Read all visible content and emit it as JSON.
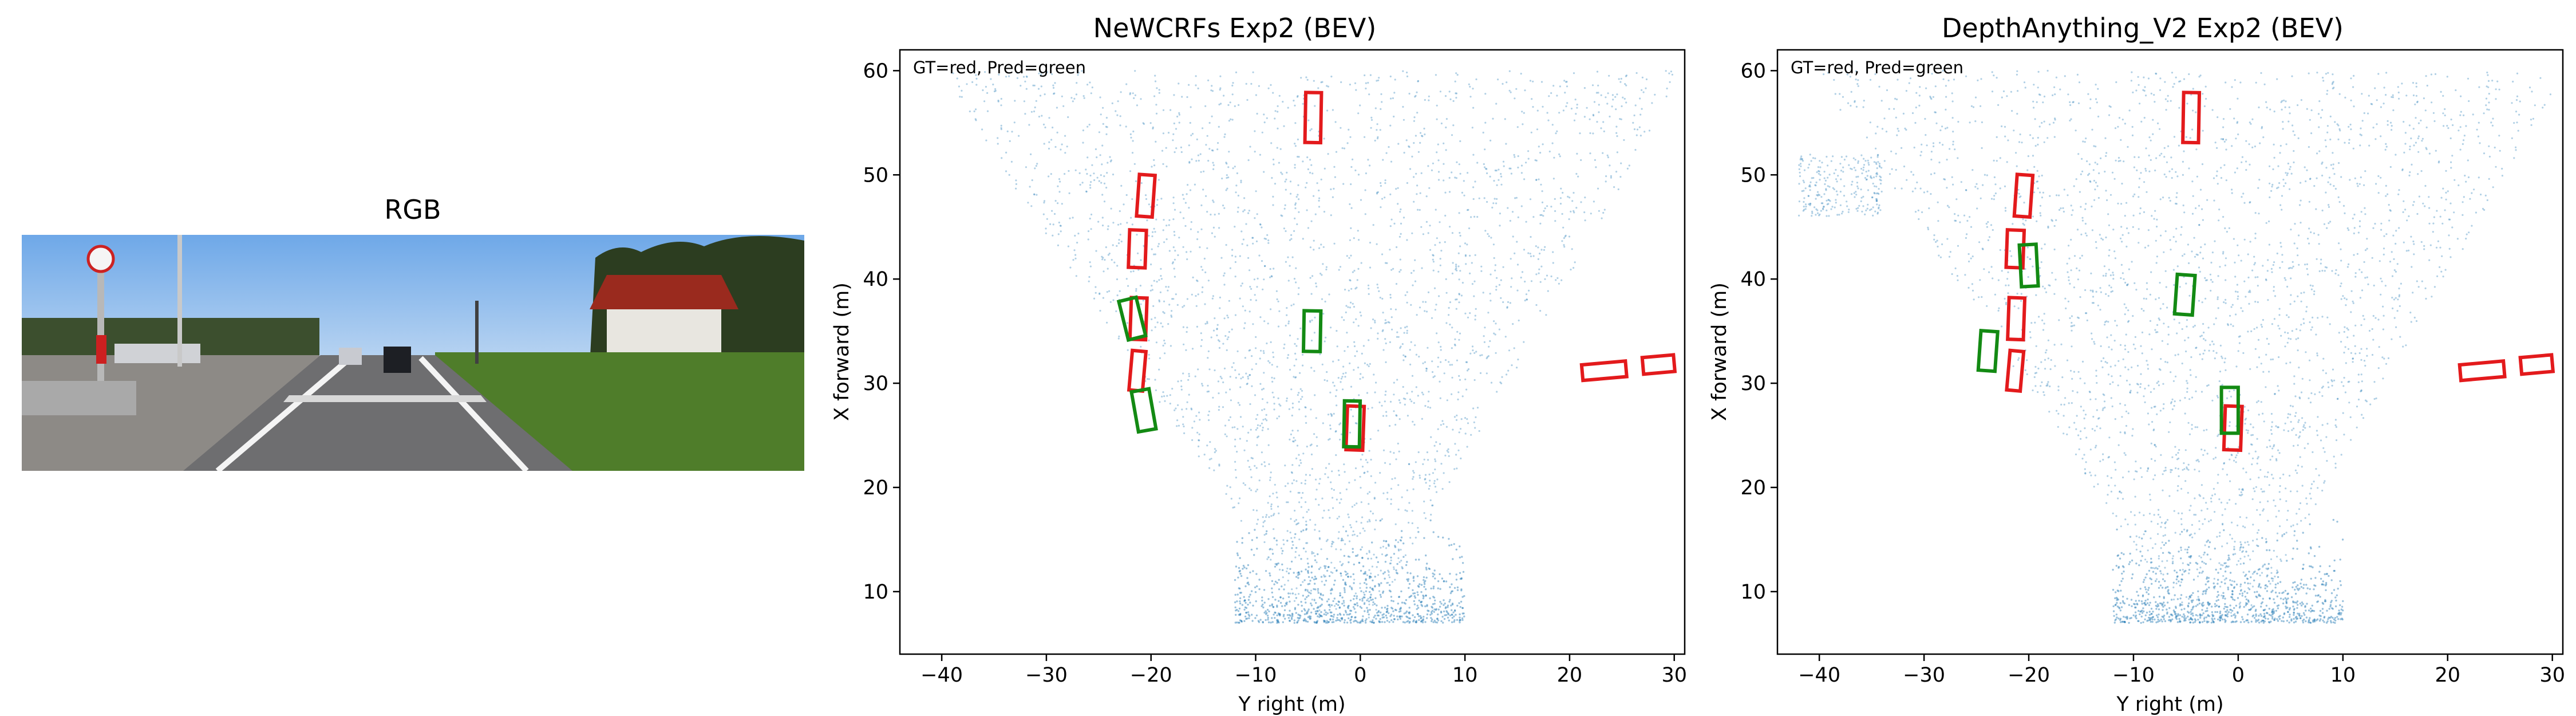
{
  "figure": {
    "rgb_title": "RGB"
  },
  "colors": {
    "gt": "#e31a1c",
    "pred": "#138a13",
    "points": "#1f77b4",
    "axes": "#000000"
  },
  "chart_data": [
    {
      "type": "scatter",
      "title": "NeWCRFs Exp2 (BEV)",
      "xlabel": "Y right (m)",
      "ylabel": "X forward (m)",
      "annotation": "GT=red, Pred=green",
      "xlim": [
        -44,
        31
      ],
      "ylim": [
        4,
        62
      ],
      "xticks": [
        -40,
        -30,
        -20,
        -10,
        0,
        10,
        20,
        30
      ],
      "yticks": [
        10,
        20,
        30,
        40,
        50,
        60
      ],
      "grid": false,
      "gt_boxes": [
        {
          "y": -4.5,
          "x": 55.5,
          "w": 1.5,
          "l": 4.8,
          "angle": 1
        },
        {
          "y": -20.5,
          "x": 48.0,
          "w": 1.5,
          "l": 4.0,
          "angle": 4
        },
        {
          "y": -21.3,
          "x": 42.9,
          "w": 1.6,
          "l": 3.6,
          "angle": 2
        },
        {
          "y": -21.2,
          "x": 36.2,
          "w": 1.5,
          "l": 4.0,
          "angle": 2
        },
        {
          "y": -21.3,
          "x": 31.2,
          "w": 1.3,
          "l": 3.8,
          "angle": 5
        },
        {
          "y": -0.5,
          "x": 25.7,
          "w": 1.6,
          "l": 4.2,
          "angle": 2
        },
        {
          "y": 23.3,
          "x": 31.2,
          "w": 4.2,
          "l": 1.5,
          "angle": -5
        },
        {
          "y": 28.5,
          "x": 31.8,
          "w": 3.0,
          "l": 1.6,
          "angle": -5
        }
      ],
      "pred_boxes": [
        {
          "y": -4.6,
          "x": 35.0,
          "w": 1.6,
          "l": 3.9,
          "angle": 1
        },
        {
          "y": -21.8,
          "x": 36.2,
          "w": 1.7,
          "l": 3.8,
          "angle": -14
        },
        {
          "y": -20.7,
          "x": 27.4,
          "w": 1.7,
          "l": 3.9,
          "angle": -10
        },
        {
          "y": -0.8,
          "x": 26.1,
          "w": 1.5,
          "l": 4.4,
          "angle": 1
        }
      ],
      "point_cloud": "dense cone of points from ~(0,7) widening to about y=-35..22 at x=40..60"
    },
    {
      "type": "scatter",
      "title": "DepthAnything_V2 Exp2 (BEV)",
      "xlabel": "Y right (m)",
      "ylabel": "X forward (m)",
      "annotation": "GT=red, Pred=green",
      "xlim": [
        -44,
        31
      ],
      "ylim": [
        4,
        62
      ],
      "xticks": [
        -40,
        -30,
        -20,
        -10,
        0,
        10,
        20,
        30
      ],
      "yticks": [
        10,
        20,
        30,
        40,
        50,
        60
      ],
      "grid": false,
      "gt_boxes": [
        {
          "y": -4.5,
          "x": 55.5,
          "w": 1.5,
          "l": 4.8,
          "angle": 1
        },
        {
          "y": -20.5,
          "x": 48.0,
          "w": 1.5,
          "l": 4.0,
          "angle": 4
        },
        {
          "y": -21.3,
          "x": 42.9,
          "w": 1.6,
          "l": 3.6,
          "angle": 2
        },
        {
          "y": -21.2,
          "x": 36.2,
          "w": 1.5,
          "l": 4.0,
          "angle": 2
        },
        {
          "y": -21.3,
          "x": 31.2,
          "w": 1.3,
          "l": 3.8,
          "angle": 5
        },
        {
          "y": -0.5,
          "x": 25.7,
          "w": 1.6,
          "l": 4.2,
          "angle": 2
        },
        {
          "y": 23.3,
          "x": 31.2,
          "w": 4.2,
          "l": 1.5,
          "angle": -5
        },
        {
          "y": 28.5,
          "x": 31.8,
          "w": 3.0,
          "l": 1.6,
          "angle": -5
        }
      ],
      "pred_boxes": [
        {
          "y": -5.1,
          "x": 38.5,
          "w": 1.7,
          "l": 3.8,
          "angle": 4
        },
        {
          "y": -20.0,
          "x": 41.3,
          "w": 1.6,
          "l": 4.0,
          "angle": -3
        },
        {
          "y": -23.9,
          "x": 33.1,
          "w": 1.6,
          "l": 3.8,
          "angle": 4
        },
        {
          "y": -0.8,
          "x": 27.4,
          "w": 1.6,
          "l": 4.4,
          "angle": 0
        }
      ],
      "point_cloud": "dense cone of points from ~(0,7) widening; extra cluster near (-40,48)"
    }
  ]
}
